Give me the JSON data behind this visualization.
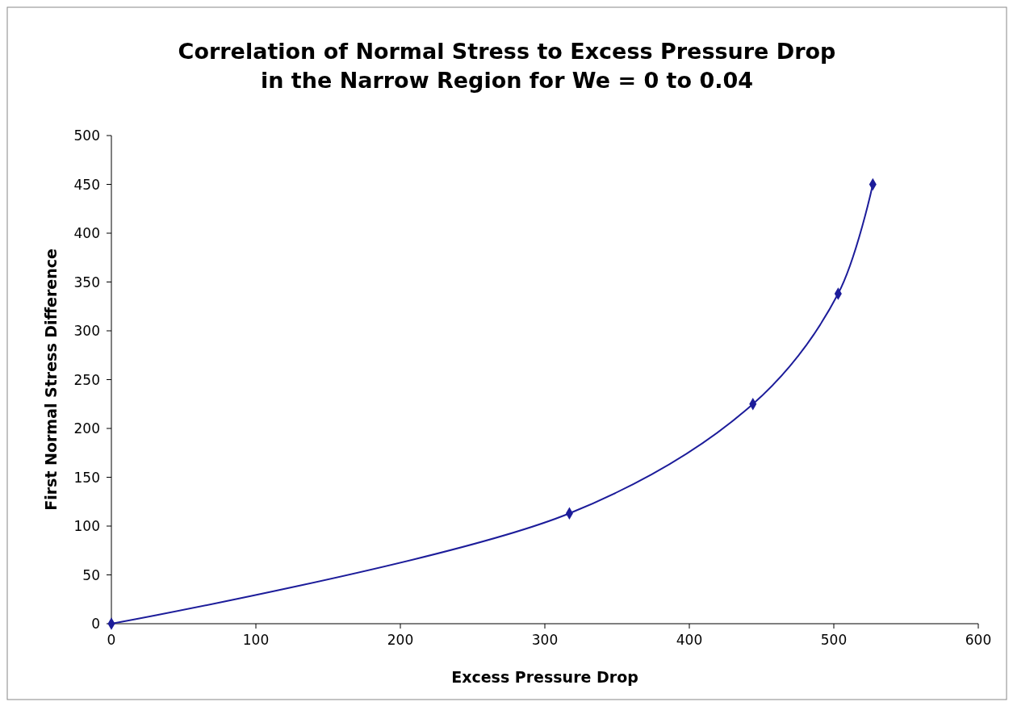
{
  "chart_data": {
    "type": "line",
    "title": "Correlation of Normal Stress to Excess Pressure Drop\nin the Narrow Region for We = 0 to 0.04",
    "xlabel": "Excess Pressure Drop",
    "ylabel": "First Normal Stress Difference",
    "x": [
      0,
      317,
      444,
      503,
      527
    ],
    "series": [
      {
        "color": "#1c1c9a",
        "values": [
          0,
          113,
          225,
          338,
          450
        ]
      }
    ],
    "xlim": [
      0,
      600
    ],
    "xticks": [
      0,
      100,
      200,
      300,
      400,
      500,
      600
    ],
    "ylim": [
      0,
      500
    ],
    "yticks": [
      0,
      50,
      100,
      150,
      200,
      250,
      300,
      350,
      400,
      450,
      500
    ],
    "grid": false,
    "marker": "diamond",
    "line_style": "solid"
  }
}
